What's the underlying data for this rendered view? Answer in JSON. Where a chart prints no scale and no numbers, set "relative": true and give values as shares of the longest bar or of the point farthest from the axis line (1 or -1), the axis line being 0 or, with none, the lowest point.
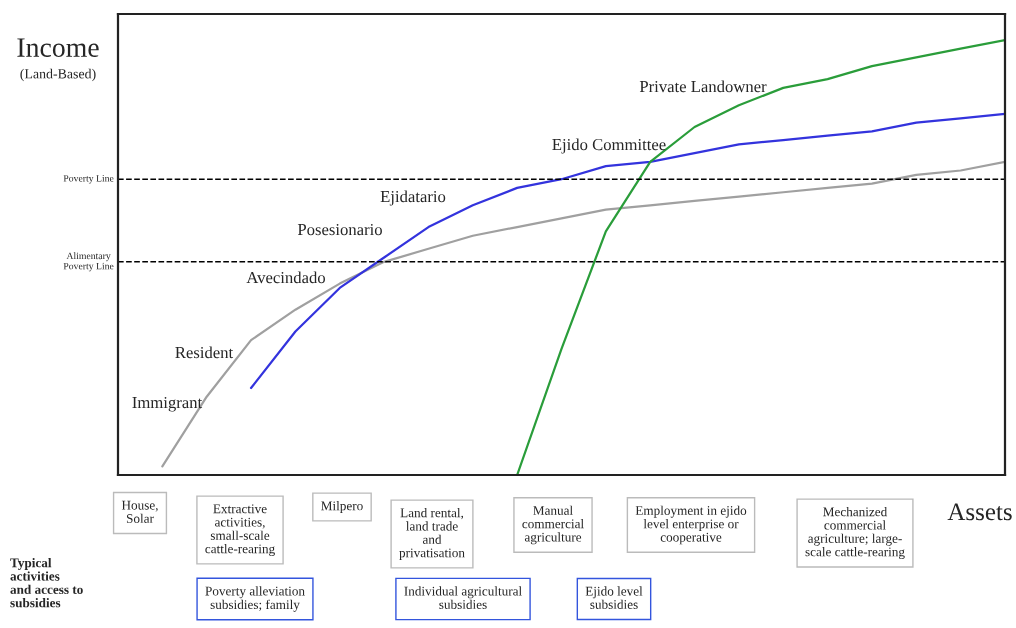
{
  "chart_data": {
    "type": "line",
    "relative": true,
    "ylabel": "Income",
    "xlabel": "Assets",
    "categories": [
      null,
      null,
      null,
      null,
      null,
      null,
      null,
      null,
      null,
      null,
      null,
      null,
      null,
      null,
      null,
      null,
      null,
      null,
      null,
      null,
      null
    ],
    "series": [
      {
        "color": "#a0a0a0",
        "values": [
          null,
          0.02,
          0.18,
          0.31,
          0.38,
          0.44,
          0.49,
          0.52,
          0.55,
          0.57,
          0.59,
          0.61,
          0.62,
          0.63,
          0.64,
          0.65,
          0.66,
          0.67,
          0.69,
          0.7,
          0.72
        ]
      },
      {
        "color": "#3333dd",
        "values": [
          null,
          null,
          null,
          0.2,
          0.33,
          0.43,
          0.5,
          0.57,
          0.62,
          0.66,
          0.68,
          0.71,
          0.72,
          0.74,
          0.76,
          0.77,
          0.78,
          0.79,
          0.81,
          0.82,
          0.83
        ]
      },
      {
        "color": "#2a9d3a",
        "values": [
          null,
          null,
          null,
          null,
          null,
          null,
          null,
          null,
          null,
          0.0,
          0.29,
          0.56,
          0.72,
          0.8,
          0.85,
          0.89,
          0.91,
          0.94,
          0.96,
          0.98,
          1.0
        ]
      }
    ],
    "ref_lines": [
      {
        "axis": "y",
        "value": 0.68,
        "label": "Poverty Line",
        "color": "#000000",
        "line_style": "dashed"
      },
      {
        "axis": "y",
        "value": 0.49,
        "label": "Alimentary\nPoverty Line",
        "color": "#000000",
        "line_style": "dashed"
      }
    ],
    "annotations": [
      "Immigrant",
      "Resident",
      "Avecindado",
      "Posesionario",
      "Ejidatario",
      "Ejido Committee",
      "Private Landowner",
      "(Land-Based)",
      "House,\nSolar",
      "Extractive\nactivities,\nsmall-scale\ncattle-rearing",
      "Milpero",
      "Land rental,\nland trade\nand\nprivatisation",
      "Manual\ncommercial\nagriculture",
      "Employment in ejido\nlevel enterprise or\ncooperative",
      "Mechanized\ncommercial\nagriculture; large-\nscale cattle-rearing",
      "Poverty alleviation\nsubsidies; family",
      "Individual agricultural\nsubsidies",
      "Ejido level\nsubsidies",
      "Typical\nactivities\nand access to\nsubsidies"
    ],
    "line_style": "solid",
    "marker": "none"
  }
}
